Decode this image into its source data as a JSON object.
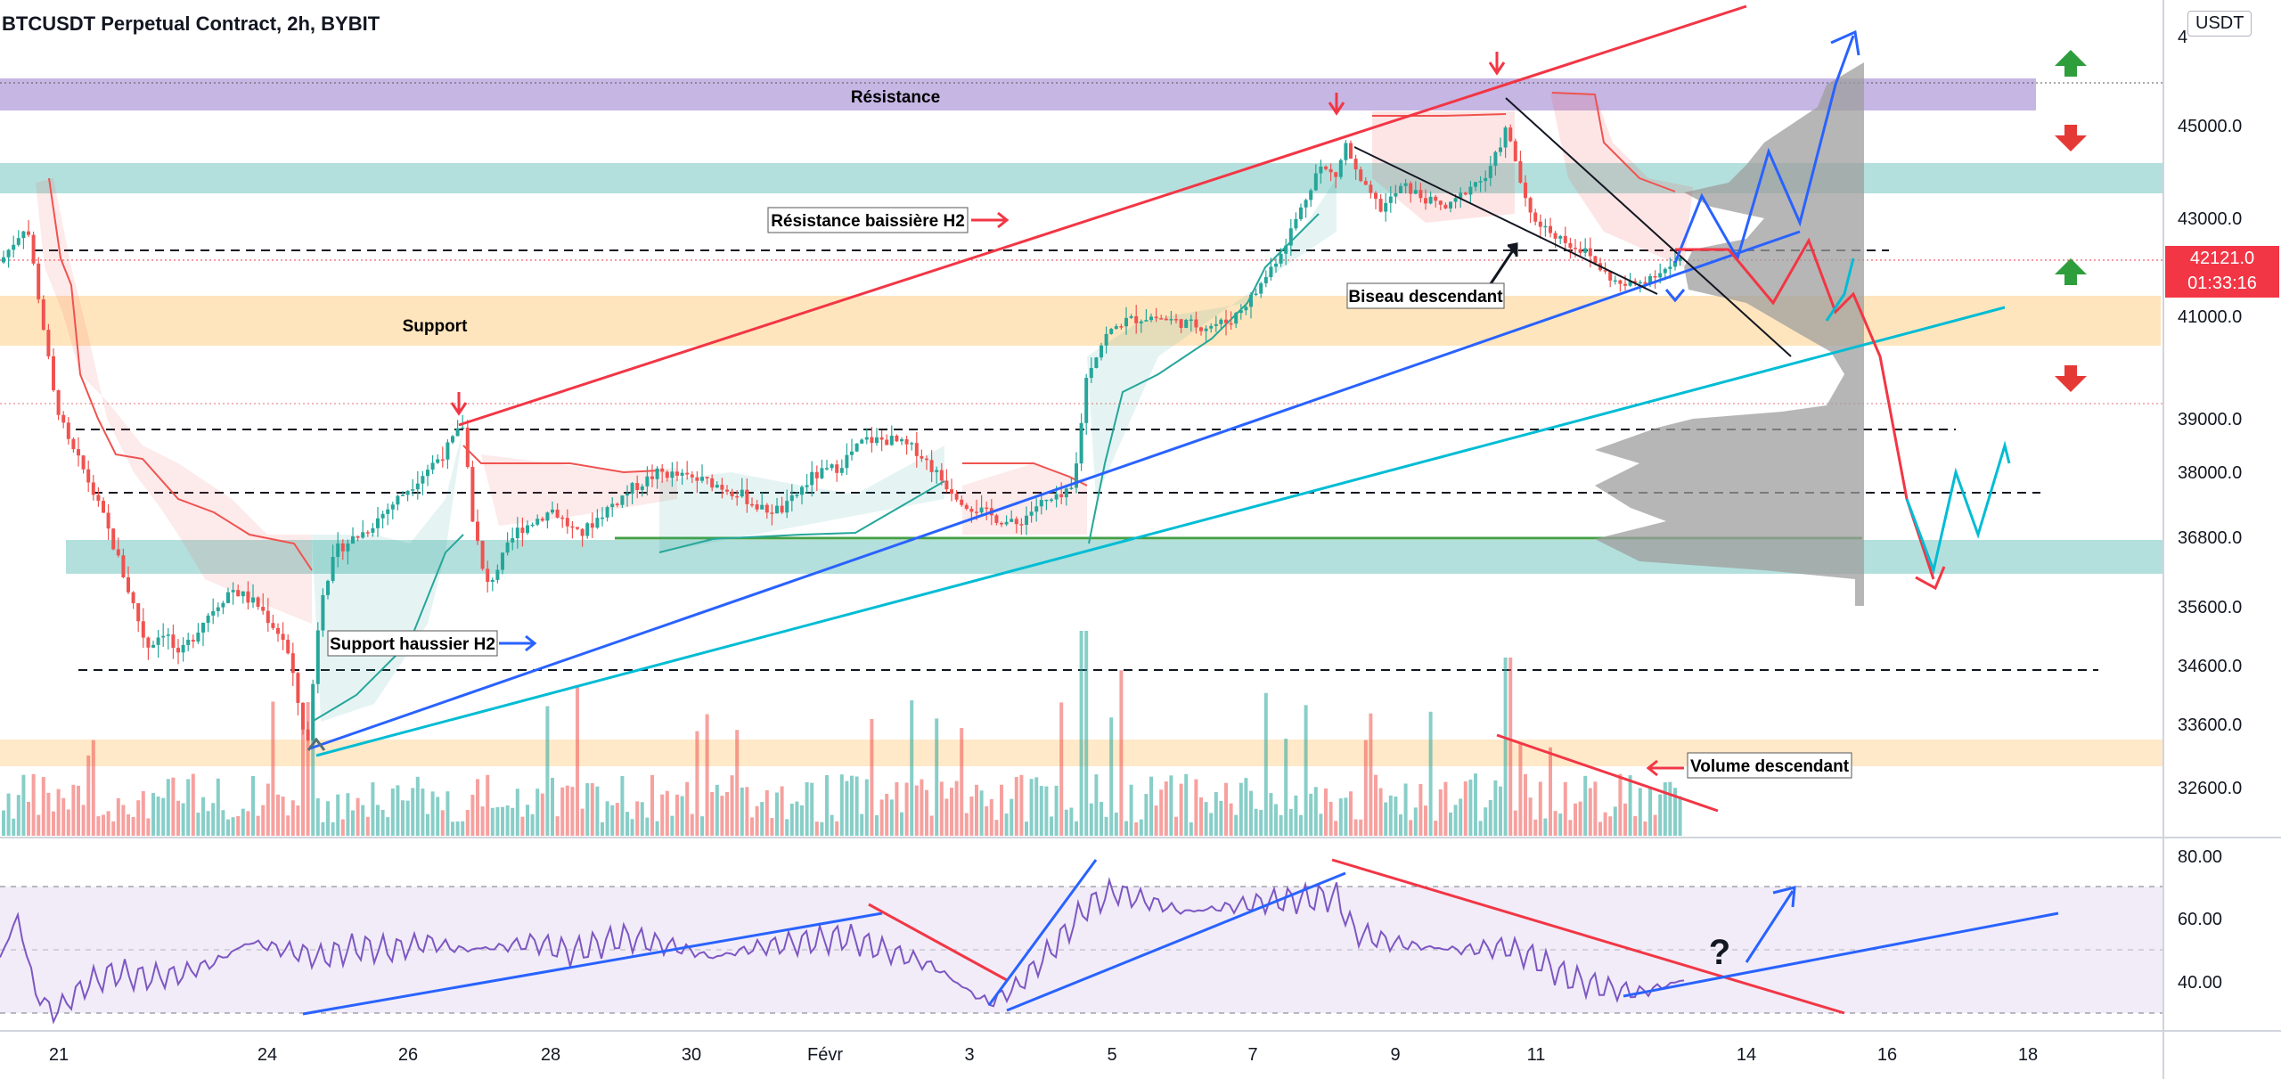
{
  "title": "BTCUSDT Perpetual Contract, 2h, BYBIT",
  "currency": "USDT",
  "last_price": "42121.0",
  "countdown": "01:33:16",
  "colors": {
    "up": "#26a69a",
    "down": "#ef5350",
    "resistance_zone": "#b39ddb",
    "support_zone": "#ffe0b2",
    "teal_zone": "#80cbc4",
    "trend_red": "#f23645",
    "trend_blue": "#2962ff",
    "trend_cyan": "#00bcd4",
    "rsi": "#7e57c2",
    "green_arrow": "#2e9e3c",
    "red_arrow": "#e53935"
  },
  "annotations": {
    "resistance": "Résistance",
    "support": "Support",
    "bearish_res": "Résistance baissière  H2",
    "bullish_sup": "Support haussier H2",
    "wedge": "Biseau descendant",
    "volume": "Volume descendant",
    "question": "?"
  },
  "chart_data": {
    "type": "candlestick",
    "x_ticks": [
      "21",
      "24",
      "26",
      "28",
      "30",
      "Févr",
      "3",
      "5",
      "7",
      "9",
      "11",
      "14",
      "16",
      "18"
    ],
    "y_ticks": [
      "45000.0",
      "43000.0",
      "41000.0",
      "39000.0",
      "38000.0",
      "36800.0",
      "35600.0",
      "34600.0",
      "33600.0",
      "32600.0"
    ],
    "y_top_partial": "4",
    "rsi_ticks": [
      "80.00",
      "60.00",
      "40.00"
    ],
    "price_path": [
      [
        0,
        42100
      ],
      [
        30,
        42900
      ],
      [
        45,
        41200
      ],
      [
        60,
        39500
      ],
      [
        75,
        38600
      ],
      [
        95,
        38000
      ],
      [
        115,
        37200
      ],
      [
        135,
        36300
      ],
      [
        150,
        35600
      ],
      [
        165,
        34900
      ],
      [
        185,
        35200
      ],
      [
        200,
        34700
      ],
      [
        230,
        35400
      ],
      [
        260,
        35900
      ],
      [
        290,
        35600
      ],
      [
        320,
        35000
      ],
      [
        345,
        33200
      ],
      [
        360,
        35800
      ],
      [
        380,
        36600
      ],
      [
        410,
        36900
      ],
      [
        440,
        37400
      ],
      [
        470,
        37900
      ],
      [
        500,
        38400
      ],
      [
        520,
        38900
      ],
      [
        530,
        37200
      ],
      [
        545,
        35900
      ],
      [
        560,
        36300
      ],
      [
        580,
        36900
      ],
      [
        620,
        37300
      ],
      [
        650,
        36800
      ],
      [
        680,
        37300
      ],
      [
        710,
        37700
      ],
      [
        740,
        38000
      ],
      [
        770,
        37900
      ],
      [
        800,
        37800
      ],
      [
        830,
        37600
      ],
      [
        855,
        37300
      ],
      [
        880,
        37300
      ],
      [
        910,
        37900
      ],
      [
        940,
        38100
      ],
      [
        970,
        38600
      ],
      [
        1000,
        38600
      ],
      [
        1030,
        38400
      ],
      [
        1060,
        37800
      ],
      [
        1085,
        37400
      ],
      [
        1110,
        37200
      ],
      [
        1140,
        37000
      ],
      [
        1165,
        37400
      ],
      [
        1190,
        37500
      ],
      [
        1205,
        37700
      ],
      [
        1220,
        39900
      ],
      [
        1240,
        40600
      ],
      [
        1260,
        40900
      ],
      [
        1290,
        41000
      ],
      [
        1320,
        40900
      ],
      [
        1350,
        40800
      ],
      [
        1380,
        40900
      ],
      [
        1410,
        41500
      ],
      [
        1440,
        42400
      ],
      [
        1460,
        43200
      ],
      [
        1480,
        44100
      ],
      [
        1500,
        43900
      ],
      [
        1510,
        44600
      ],
      [
        1525,
        43800
      ],
      [
        1550,
        43200
      ],
      [
        1575,
        43700
      ],
      [
        1600,
        43400
      ],
      [
        1625,
        43200
      ],
      [
        1650,
        43700
      ],
      [
        1670,
        43900
      ],
      [
        1690,
        44900
      ],
      [
        1700,
        44300
      ],
      [
        1715,
        43100
      ],
      [
        1735,
        42800
      ],
      [
        1760,
        42500
      ],
      [
        1780,
        42300
      ],
      [
        1800,
        41900
      ],
      [
        1820,
        41600
      ],
      [
        1840,
        41700
      ],
      [
        1860,
        41900
      ],
      [
        1875,
        42000
      ],
      [
        1890,
        42200
      ]
    ],
    "rsi_path": [
      [
        0,
        52
      ],
      [
        20,
        68
      ],
      [
        40,
        38
      ],
      [
        60,
        30
      ],
      [
        80,
        36
      ],
      [
        100,
        42
      ],
      [
        130,
        46
      ],
      [
        160,
        44
      ],
      [
        200,
        45
      ],
      [
        240,
        50
      ],
      [
        280,
        58
      ],
      [
        320,
        55
      ],
      [
        360,
        52
      ],
      [
        400,
        56
      ],
      [
        440,
        55
      ],
      [
        480,
        58
      ],
      [
        520,
        55
      ],
      [
        560,
        56
      ],
      [
        600,
        58
      ],
      [
        640,
        54
      ],
      [
        700,
        60
      ],
      [
        760,
        56
      ],
      [
        800,
        52
      ],
      [
        850,
        56
      ],
      [
        900,
        58
      ],
      [
        950,
        60
      ],
      [
        990,
        55
      ],
      [
        1020,
        52
      ],
      [
        1050,
        48
      ],
      [
        1090,
        38
      ],
      [
        1110,
        34
      ],
      [
        1140,
        40
      ],
      [
        1180,
        55
      ],
      [
        1220,
        72
      ],
      [
        1250,
        78
      ],
      [
        1290,
        74
      ],
      [
        1330,
        70
      ],
      [
        1380,
        72
      ],
      [
        1420,
        74
      ],
      [
        1460,
        75
      ],
      [
        1500,
        76
      ],
      [
        1520,
        62
      ],
      [
        1560,
        58
      ],
      [
        1600,
        56
      ],
      [
        1640,
        55
      ],
      [
        1690,
        56
      ],
      [
        1720,
        52
      ],
      [
        1760,
        44
      ],
      [
        1800,
        40
      ],
      [
        1840,
        38
      ],
      [
        1870,
        41
      ],
      [
        1890,
        43
      ]
    ]
  }
}
